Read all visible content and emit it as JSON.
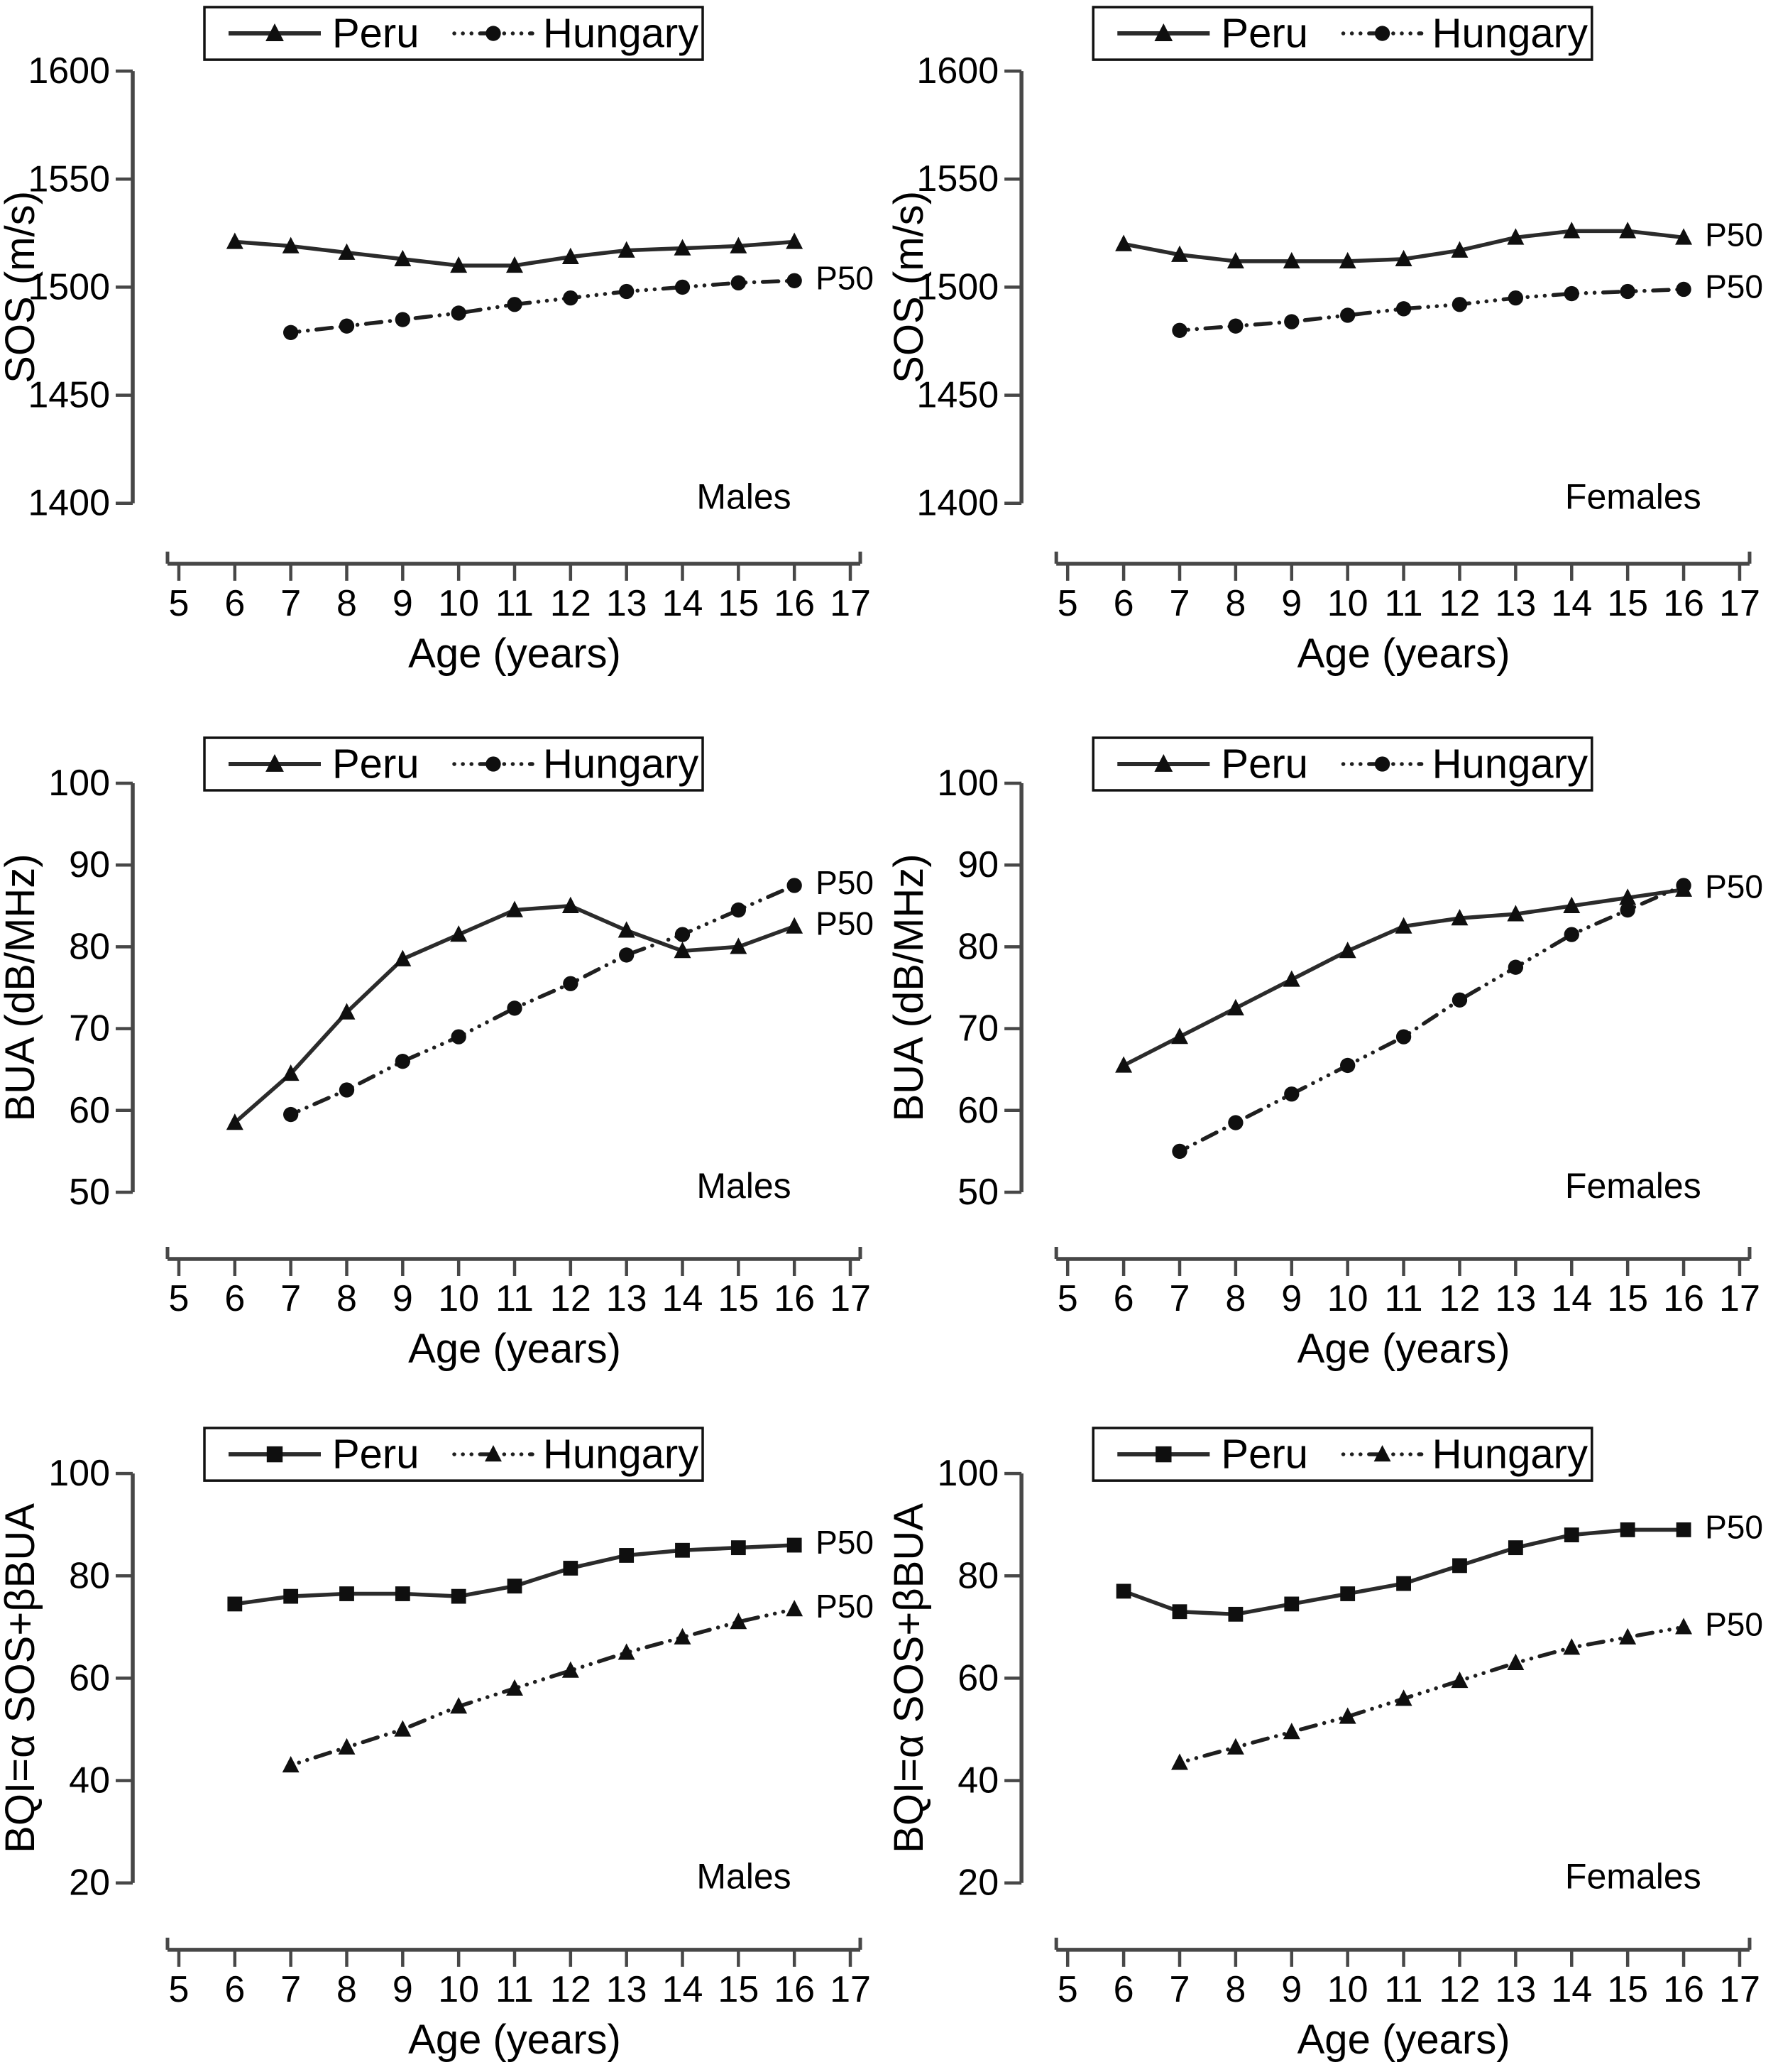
{
  "figure": {
    "background": "#ffffff",
    "x_axis_label": "Age (years)",
    "p50_label": "P50"
  },
  "colors": {
    "axis": "#474747",
    "peru_line": "#2b2b2b",
    "hungary_line": "#1f1f1f",
    "marker": "#0f0f0f",
    "text": "#000000",
    "legend_border": "#111111",
    "background": "#ffffff"
  },
  "chart_data": [
    {
      "id": "sos-males",
      "type": "line",
      "row": 1,
      "panel_label": "Males",
      "xlabel": "Age (years)",
      "ylabel": "SOS (m/s)",
      "xlim": [
        5,
        17
      ],
      "ylim": [
        1400,
        1600
      ],
      "xticks": [
        5,
        6,
        7,
        8,
        9,
        10,
        11,
        12,
        13,
        14,
        15,
        16,
        17
      ],
      "yticks": [
        1400,
        1450,
        1500,
        1550,
        1600
      ],
      "legend_position": "top",
      "grid": false,
      "series": [
        {
          "name": "Peru",
          "marker": "triangle",
          "line_style": "solid",
          "x": [
            6,
            7,
            8,
            9,
            10,
            11,
            12,
            13,
            14,
            15,
            16
          ],
          "y": [
            1521,
            1519,
            1516,
            1513,
            1510,
            1510,
            1514,
            1517,
            1518,
            1519,
            1521
          ]
        },
        {
          "name": "Hungary",
          "marker": "circle",
          "line_style": "dashdot",
          "x": [
            7,
            8,
            9,
            10,
            11,
            12,
            13,
            14,
            15,
            16
          ],
          "y": [
            1479,
            1482,
            1485,
            1488,
            1492,
            1495,
            1498,
            1500,
            1502,
            1503
          ]
        }
      ],
      "annotations": [
        {
          "text": "P50",
          "attach_to": "Hungary"
        }
      ]
    },
    {
      "id": "sos-females",
      "type": "line",
      "row": 1,
      "panel_label": "Females",
      "xlabel": "Age (years)",
      "ylabel": "SOS (m/s)",
      "xlim": [
        5,
        17
      ],
      "ylim": [
        1400,
        1600
      ],
      "xticks": [
        5,
        6,
        7,
        8,
        9,
        10,
        11,
        12,
        13,
        14,
        15,
        16,
        17
      ],
      "yticks": [
        1400,
        1450,
        1500,
        1550,
        1600
      ],
      "legend_position": "top",
      "grid": false,
      "series": [
        {
          "name": "Peru",
          "marker": "triangle",
          "line_style": "solid",
          "x": [
            6,
            7,
            8,
            9,
            10,
            11,
            12,
            13,
            14,
            15,
            16
          ],
          "y": [
            1520,
            1515,
            1512,
            1512,
            1512,
            1513,
            1517,
            1523,
            1526,
            1526,
            1523
          ]
        },
        {
          "name": "Hungary",
          "marker": "circle",
          "line_style": "dashdot",
          "x": [
            7,
            8,
            9,
            10,
            11,
            12,
            13,
            14,
            15,
            16
          ],
          "y": [
            1480,
            1482,
            1484,
            1487,
            1490,
            1492,
            1495,
            1497,
            1498,
            1499
          ]
        }
      ],
      "annotations": [
        {
          "text": "P50",
          "attach_to": "Peru"
        },
        {
          "text": "P50",
          "attach_to": "Hungary"
        }
      ]
    },
    {
      "id": "bua-males",
      "type": "line",
      "row": 2,
      "panel_label": "Males",
      "xlabel": "Age (years)",
      "ylabel": "BUA (dB/MHz)",
      "xlim": [
        5,
        17
      ],
      "ylim": [
        50,
        100
      ],
      "xticks": [
        5,
        6,
        7,
        8,
        9,
        10,
        11,
        12,
        13,
        14,
        15,
        16,
        17
      ],
      "yticks": [
        50,
        60,
        70,
        80,
        90,
        100
      ],
      "legend_position": "top",
      "grid": false,
      "series": [
        {
          "name": "Peru",
          "marker": "triangle",
          "line_style": "solid",
          "x": [
            6,
            7,
            8,
            9,
            10,
            11,
            12,
            13,
            14,
            15,
            16
          ],
          "y": [
            58.5,
            64.5,
            72,
            78.5,
            81.5,
            84.5,
            85,
            82,
            79.5,
            80,
            82.5
          ]
        },
        {
          "name": "Hungary",
          "marker": "circle",
          "line_style": "dashdot",
          "x": [
            7,
            8,
            9,
            10,
            11,
            12,
            13,
            14,
            15,
            16
          ],
          "y": [
            59.5,
            62.5,
            66,
            69,
            72.5,
            75.5,
            79,
            81.5,
            84.5,
            87.5
          ]
        }
      ],
      "annotations": [
        {
          "text": "P50",
          "attach_to": "Hungary"
        },
        {
          "text": "P50",
          "attach_to": "Peru"
        }
      ]
    },
    {
      "id": "bua-females",
      "type": "line",
      "row": 2,
      "panel_label": "Females",
      "xlabel": "Age (years)",
      "ylabel": "BUA (dB/MHz)",
      "xlim": [
        5,
        17
      ],
      "ylim": [
        50,
        100
      ],
      "xticks": [
        5,
        6,
        7,
        8,
        9,
        10,
        11,
        12,
        13,
        14,
        15,
        16,
        17
      ],
      "yticks": [
        50,
        60,
        70,
        80,
        90,
        100
      ],
      "legend_position": "top",
      "grid": false,
      "series": [
        {
          "name": "Peru",
          "marker": "triangle",
          "line_style": "solid",
          "x": [
            6,
            7,
            8,
            9,
            10,
            11,
            12,
            13,
            14,
            15,
            16
          ],
          "y": [
            65.5,
            69,
            72.5,
            76,
            79.5,
            82.5,
            83.5,
            84,
            85,
            86,
            87
          ]
        },
        {
          "name": "Hungary",
          "marker": "circle",
          "line_style": "dashdot",
          "x": [
            7,
            8,
            9,
            10,
            11,
            12,
            13,
            14,
            15,
            16
          ],
          "y": [
            55,
            58.5,
            62,
            65.5,
            69,
            73.5,
            77.5,
            81.5,
            84.5,
            87.5
          ]
        }
      ],
      "annotations": [
        {
          "text": "P50",
          "attach_to": "Peru"
        }
      ]
    },
    {
      "id": "bqi-males",
      "type": "line",
      "row": 3,
      "panel_label": "Males",
      "xlabel": "Age (years)",
      "ylabel": "BQI=α SOS+βBUA",
      "xlim": [
        5,
        17
      ],
      "ylim": [
        20,
        100
      ],
      "xticks": [
        5,
        6,
        7,
        8,
        9,
        10,
        11,
        12,
        13,
        14,
        15,
        16,
        17
      ],
      "yticks": [
        20,
        40,
        60,
        80,
        100
      ],
      "legend_position": "top",
      "grid": false,
      "series": [
        {
          "name": "Peru",
          "marker": "square",
          "line_style": "solid",
          "x": [
            6,
            7,
            8,
            9,
            10,
            11,
            12,
            13,
            14,
            15,
            16
          ],
          "y": [
            74.5,
            76,
            76.5,
            76.5,
            76,
            78,
            81.5,
            84,
            85,
            85.5,
            86
          ]
        },
        {
          "name": "Hungary",
          "marker": "triangle",
          "line_style": "dashdot",
          "x": [
            7,
            8,
            9,
            10,
            11,
            12,
            13,
            14,
            15,
            16
          ],
          "y": [
            43,
            46.5,
            50,
            54.5,
            58,
            61.5,
            65,
            68,
            71,
            73.5
          ]
        }
      ],
      "annotations": [
        {
          "text": "P50",
          "attach_to": "Peru"
        },
        {
          "text": "P50",
          "attach_to": "Hungary"
        }
      ]
    },
    {
      "id": "bqi-females",
      "type": "line",
      "row": 3,
      "panel_label": "Females",
      "xlabel": "Age (years)",
      "ylabel": "BQI=α SOS+βBUA",
      "xlim": [
        5,
        17
      ],
      "ylim": [
        20,
        100
      ],
      "xticks": [
        5,
        6,
        7,
        8,
        9,
        10,
        11,
        12,
        13,
        14,
        15,
        16,
        17
      ],
      "yticks": [
        20,
        40,
        60,
        80,
        100
      ],
      "legend_position": "top",
      "grid": false,
      "series": [
        {
          "name": "Peru",
          "marker": "square",
          "line_style": "solid",
          "x": [
            6,
            7,
            8,
            9,
            10,
            11,
            12,
            13,
            14,
            15,
            16
          ],
          "y": [
            77,
            73,
            72.5,
            74.5,
            76.5,
            78.5,
            82,
            85.5,
            88,
            89,
            89
          ]
        },
        {
          "name": "Hungary",
          "marker": "triangle",
          "line_style": "dashdot",
          "x": [
            7,
            8,
            9,
            10,
            11,
            12,
            13,
            14,
            15,
            16
          ],
          "y": [
            43.5,
            46.5,
            49.5,
            52.5,
            56,
            59.5,
            63,
            66,
            68,
            70
          ]
        }
      ],
      "annotations": [
        {
          "text": "P50",
          "attach_to": "Peru"
        },
        {
          "text": "P50",
          "attach_to": "Hungary"
        }
      ]
    }
  ]
}
